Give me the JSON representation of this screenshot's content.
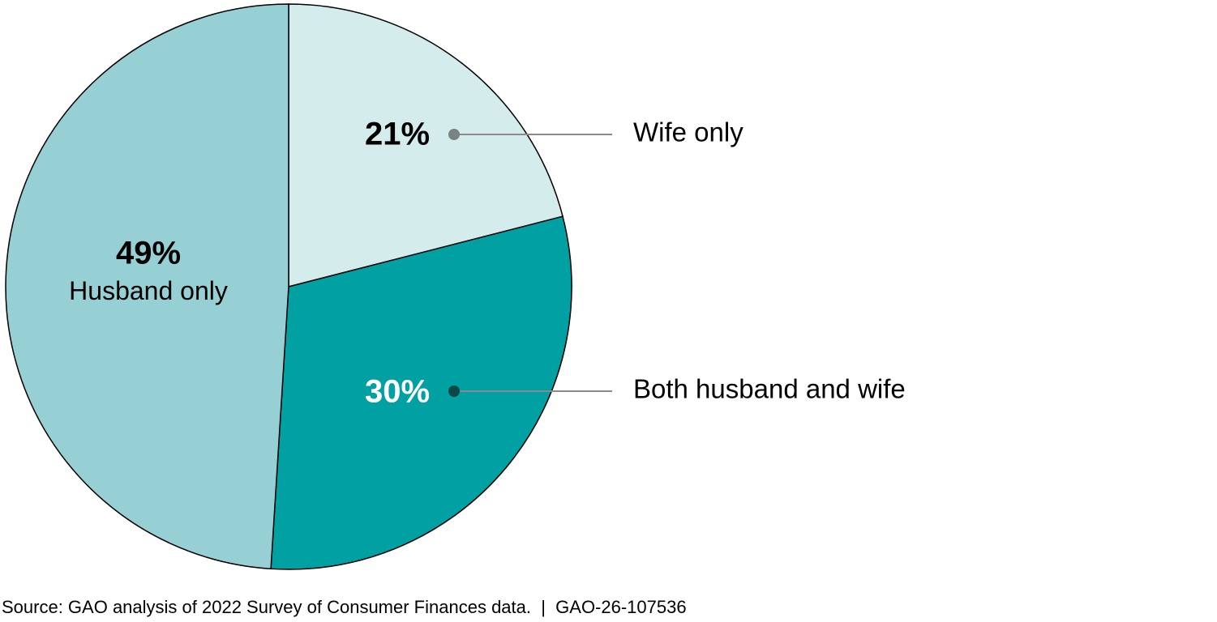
{
  "chart_data": {
    "type": "pie",
    "categories": [
      "Wife only",
      "Both husband and wife",
      "Husband only"
    ],
    "values": [
      21,
      30,
      49
    ],
    "value_labels": [
      "21%",
      "30%",
      "49%"
    ],
    "colors": [
      "#d4ecec",
      "#00a0a3",
      "#96cfd4"
    ],
    "source": "Source: GAO analysis of 2022 Survey of Consumer Finances data.  |  GAO-26-107536"
  }
}
